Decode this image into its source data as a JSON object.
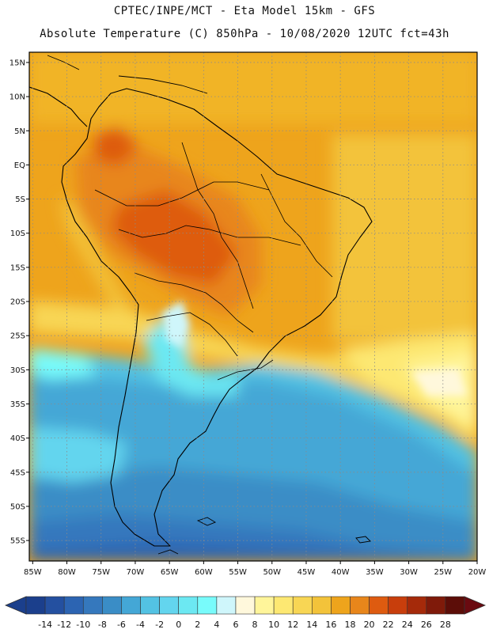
{
  "header": {
    "line1": "CPTEC/INPE/MCT  -   Eta Model 15km  -  GFS",
    "line2": "Absolute Temperature (C) 850hPa - 10/08/2020 12UTC fct=43h"
  },
  "axes": {
    "lat_labels": [
      "15N",
      "10N",
      "5N",
      "EQ",
      "5S",
      "10S",
      "15S",
      "20S",
      "25S",
      "30S",
      "35S",
      "40S",
      "45S",
      "50S",
      "55S"
    ],
    "lat_values": [
      15,
      10,
      5,
      0,
      -5,
      -10,
      -15,
      -20,
      -25,
      -30,
      -35,
      -40,
      -45,
      -50,
      -55
    ],
    "lon_labels": [
      "85W",
      "80W",
      "75W",
      "70W",
      "65W",
      "60W",
      "55W",
      "50W",
      "45W",
      "40W",
      "35W",
      "30W",
      "25W",
      "20W"
    ],
    "lon_values": [
      -85,
      -80,
      -75,
      -70,
      -65,
      -60,
      -55,
      -50,
      -45,
      -40,
      -35,
      -30,
      -25,
      -20
    ],
    "lon_range": [
      -85.5,
      -20
    ],
    "lat_range": [
      -58,
      16.5
    ]
  },
  "colorbar": {
    "labels": [
      "-14",
      "-12",
      "-10",
      "-8",
      "-6",
      "-4",
      "-2",
      "0",
      "2",
      "4",
      "6",
      "8",
      "10",
      "12",
      "14",
      "16",
      "18",
      "20",
      "22",
      "24",
      "26",
      "28"
    ],
    "colors": [
      "#1b3f8c",
      "#2450a0",
      "#2c64b2",
      "#3578bd",
      "#3a8dc6",
      "#44a7d6",
      "#53c2e3",
      "#63d5ee",
      "#6ce8f2",
      "#78fbfb",
      "#cff6fb",
      "#fff8dc",
      "#fff59a",
      "#fde872",
      "#f8d654",
      "#f3c33a",
      "#eea41c",
      "#e8861b",
      "#de5b10",
      "#c83e0c",
      "#a52a0a",
      "#7f1a0a",
      "#5c0d08"
    ]
  }
}
